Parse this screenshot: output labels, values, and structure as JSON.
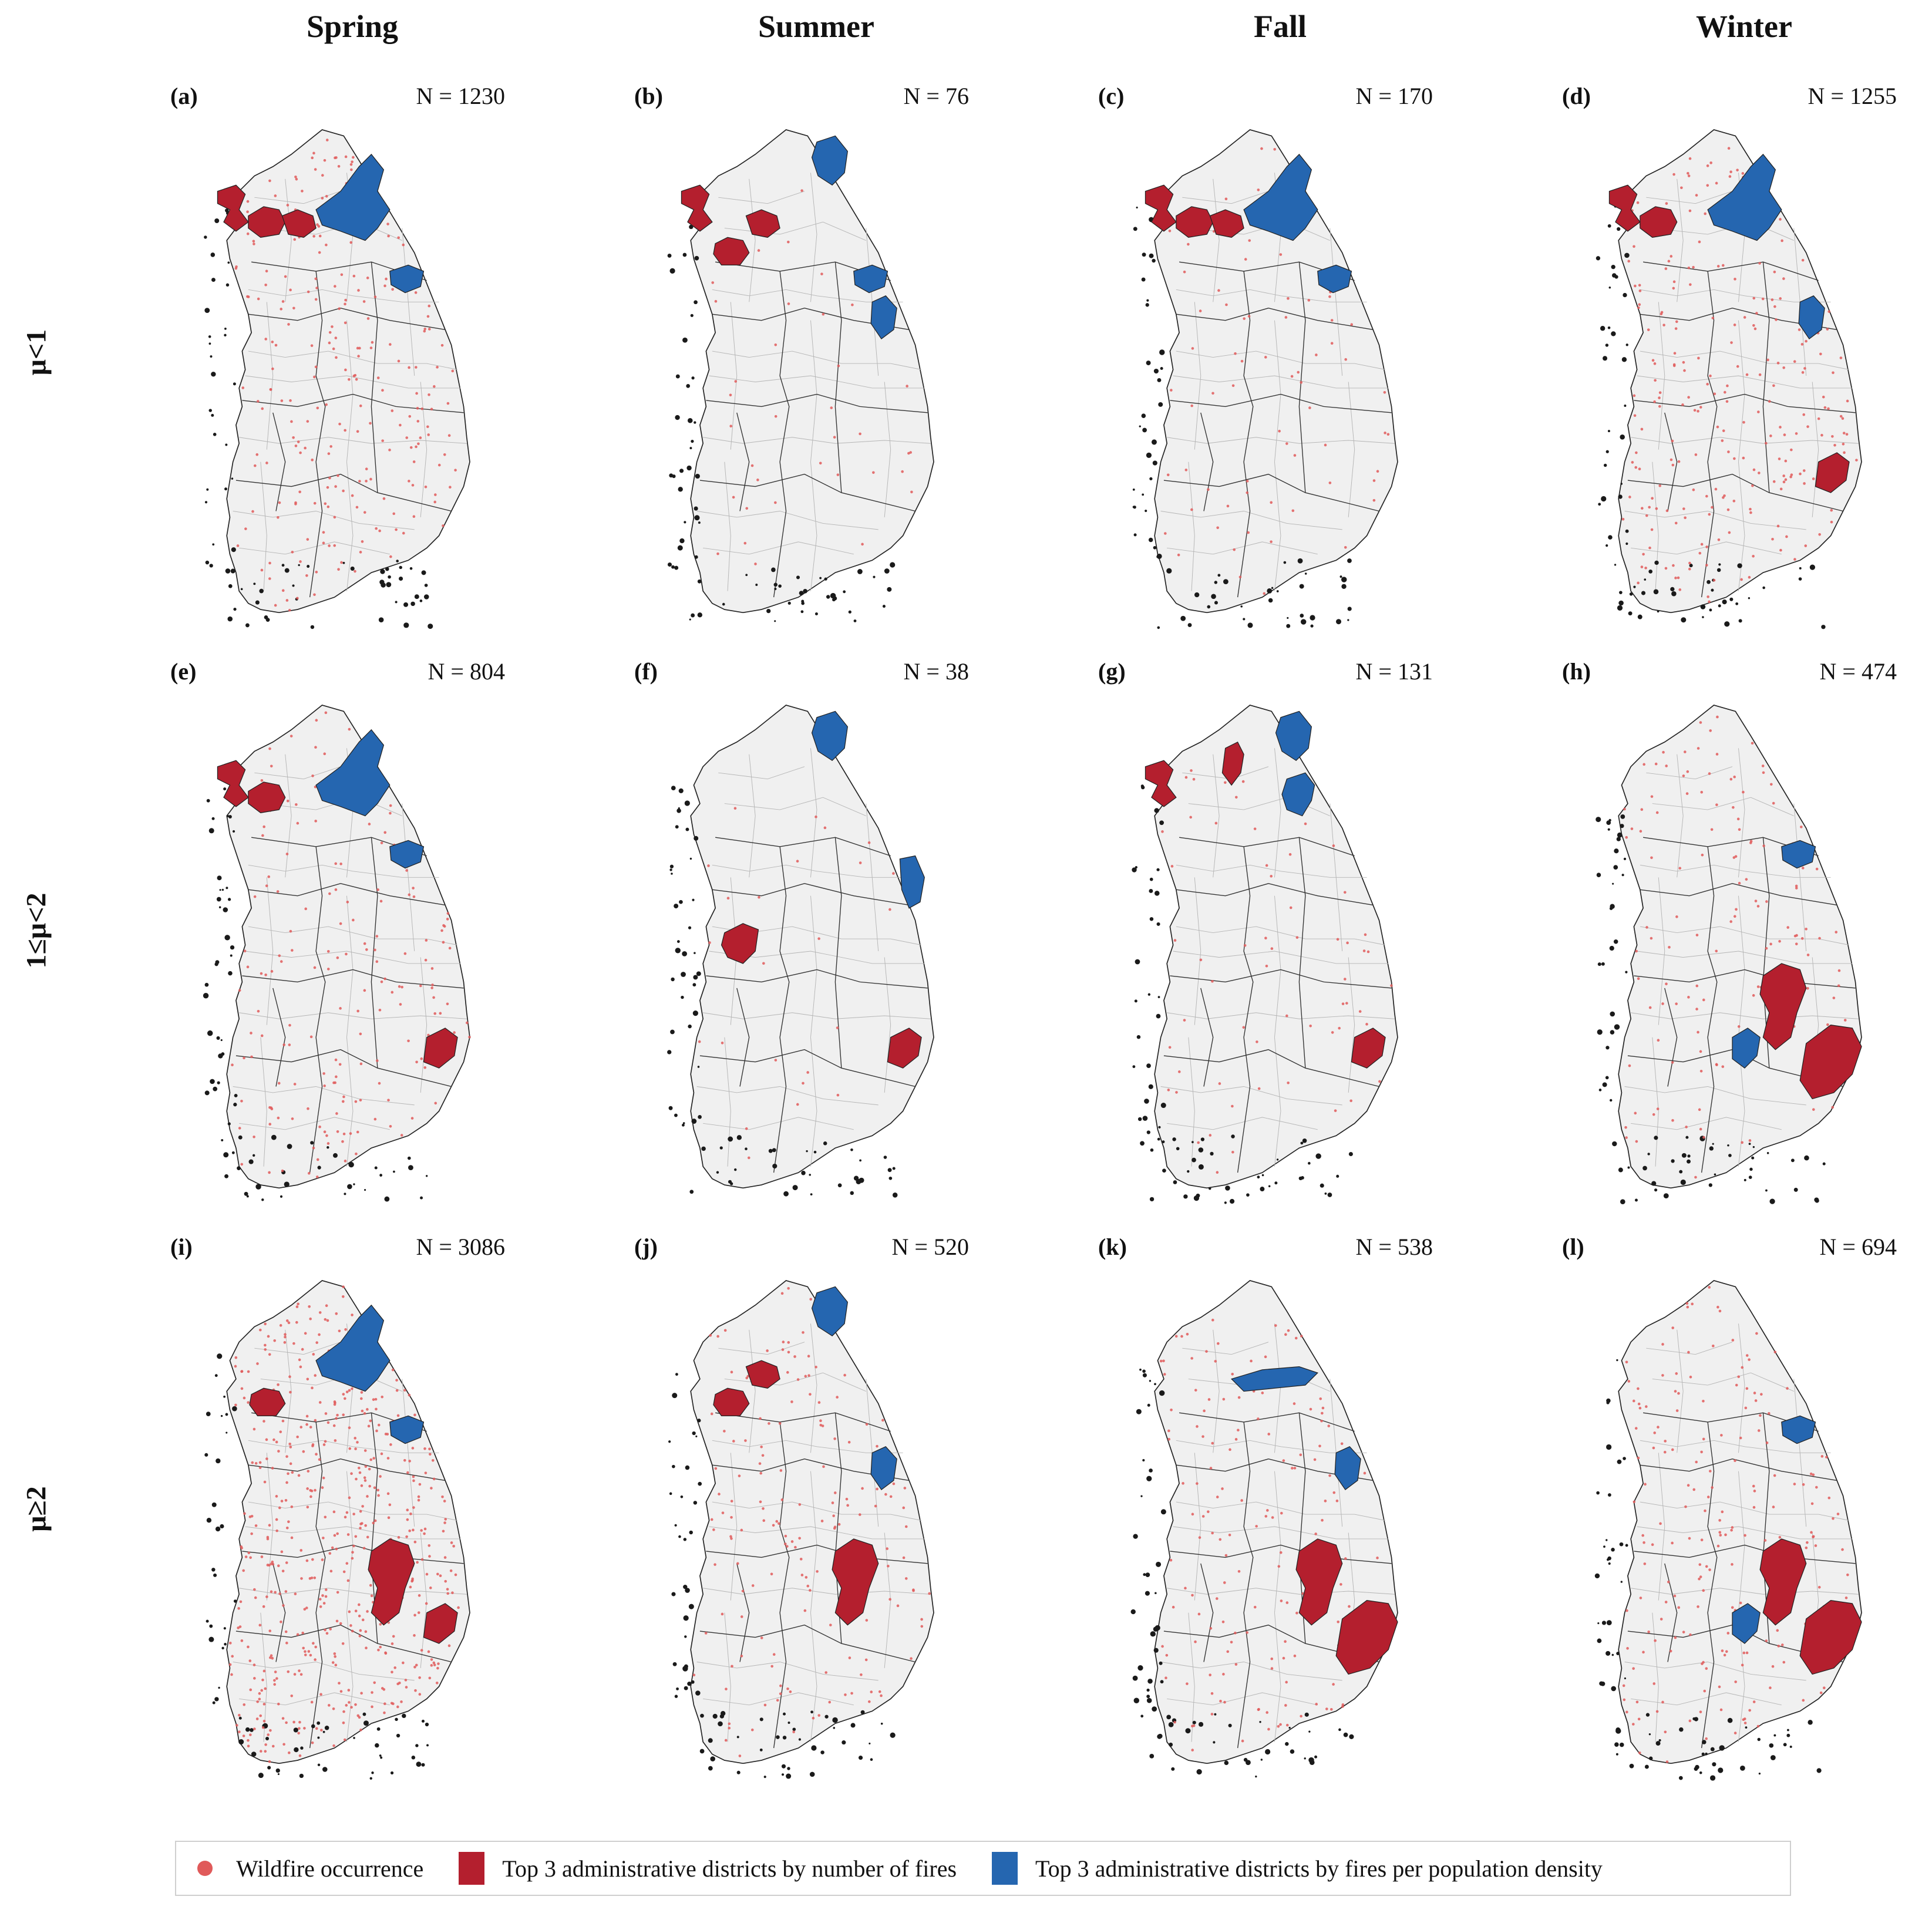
{
  "columns": [
    "Spring",
    "Summer",
    "Fall",
    "Winter"
  ],
  "rows": [
    "μ<1",
    "1≤μ<2",
    "μ≥2"
  ],
  "panels": [
    {
      "label": "(a)",
      "n": "N = 1230",
      "pts": 240,
      "red": [
        "nw_island",
        "nw_a",
        "n_mid"
      ],
      "blue": [
        "ne_big",
        "e_small"
      ]
    },
    {
      "label": "(b)",
      "n": "N = 76",
      "pts": 40,
      "red": [
        "nw_island",
        "nw_b",
        "n_mid"
      ],
      "blue": [
        "ne_top",
        "e_small",
        "e_mid"
      ]
    },
    {
      "label": "(c)",
      "n": "N = 170",
      "pts": 70,
      "red": [
        "nw_island",
        "nw_a",
        "n_mid"
      ],
      "blue": [
        "ne_big",
        "e_small"
      ]
    },
    {
      "label": "(d)",
      "n": "N = 1255",
      "pts": 240,
      "red": [
        "nw_island",
        "nw_a",
        "se_coast"
      ],
      "blue": [
        "ne_big",
        "e_mid"
      ]
    },
    {
      "label": "(e)",
      "n": "N = 804",
      "pts": 170,
      "red": [
        "nw_island",
        "nw_a",
        "se_coast"
      ],
      "blue": [
        "ne_big",
        "e_small"
      ]
    },
    {
      "label": "(f)",
      "n": "N = 38",
      "pts": 25,
      "red": [
        "w_center",
        "se_coast"
      ],
      "blue": [
        "ne_top",
        "e_coast"
      ]
    },
    {
      "label": "(g)",
      "n": "N = 131",
      "pts": 60,
      "red": [
        "nw_island",
        "n_strip",
        "se_coast"
      ],
      "blue": [
        "ne_top",
        "ne_low"
      ]
    },
    {
      "label": "(h)",
      "n": "N = 474",
      "pts": 130,
      "red": [
        "se_center",
        "se_coast_big"
      ],
      "blue": [
        "e_small",
        "s_center"
      ]
    },
    {
      "label": "(i)",
      "n": "N = 3086",
      "pts": 520,
      "red": [
        "nw_b",
        "se_center",
        "se_coast"
      ],
      "blue": [
        "ne_big",
        "e_small"
      ]
    },
    {
      "label": "(j)",
      "n": "N = 520",
      "pts": 160,
      "red": [
        "nw_b",
        "n_mid",
        "se_center"
      ],
      "blue": [
        "ne_top",
        "e_mid"
      ]
    },
    {
      "label": "(k)",
      "n": "N = 538",
      "pts": 160,
      "red": [
        "se_center",
        "se_coast_big"
      ],
      "blue": [
        "n_strip_blue",
        "e_mid"
      ]
    },
    {
      "label": "(l)",
      "n": "N = 694",
      "pts": 200,
      "red": [
        "se_center",
        "se_coast_big"
      ],
      "blue": [
        "e_small",
        "s_center"
      ]
    }
  ],
  "legend": {
    "items": [
      {
        "label": "Wildfire occurrence",
        "color": "#e05a5a"
      },
      {
        "label": "Top 3 administrative districts by number of fires",
        "color": "#b41f2e"
      },
      {
        "label": "Top 3 administrative districts by fires per population density",
        "color": "#2566b0"
      }
    ]
  },
  "colors": {
    "land": "#f0f0f0",
    "red": "#b41f2e",
    "blue": "#2566b0",
    "dot": "#e05a5a"
  }
}
